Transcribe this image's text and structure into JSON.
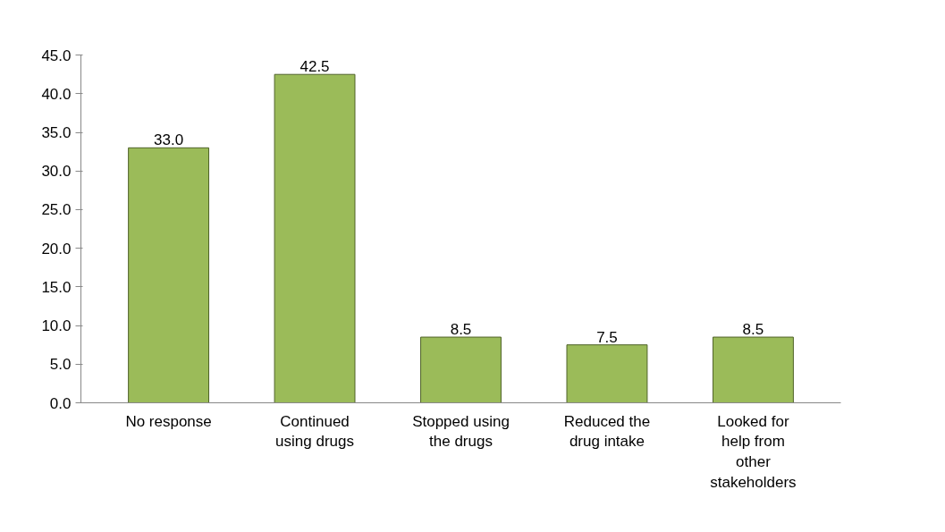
{
  "chart_data": {
    "type": "bar",
    "categories": [
      "No response",
      "Continued using drugs",
      "Stopped using the drugs",
      "Reduced the drug intake",
      "Looked for help from other stakeholders"
    ],
    "values": [
      33.0,
      42.5,
      8.5,
      7.5,
      8.5
    ],
    "value_labels": [
      "33.0",
      "42.5",
      "8.5",
      "7.5",
      "8.5"
    ],
    "color": "#9bbb59",
    "ylim": [
      0,
      45
    ],
    "yticks": [
      {
        "value": 0,
        "label": "0.0"
      },
      {
        "value": 5,
        "label": "5.0"
      },
      {
        "value": 10,
        "label": "10.0"
      },
      {
        "value": 15,
        "label": "15.0"
      },
      {
        "value": 20,
        "label": "20.0"
      },
      {
        "value": 25,
        "label": "25.0"
      },
      {
        "value": 30,
        "label": "30.0"
      },
      {
        "value": 35,
        "label": "35.0"
      },
      {
        "value": 40,
        "label": "40.0"
      },
      {
        "value": 45,
        "label": "45.0"
      }
    ],
    "grid": false
  }
}
